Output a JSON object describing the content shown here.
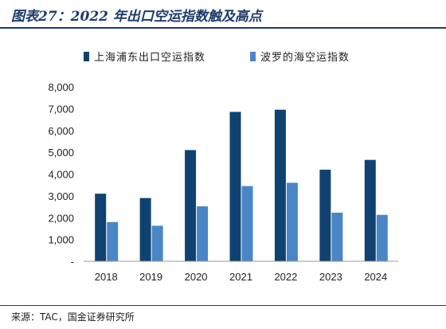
{
  "title": "图表27：2022 年出口空运指数触及高点",
  "source": "来源：TAC，国金证券研究所",
  "colors": {
    "series1": "#0f4270",
    "series2": "#4a86c5"
  },
  "chart_data": {
    "type": "bar",
    "title": "",
    "xlabel": "",
    "ylabel": "",
    "categories": [
      "2018",
      "2019",
      "2020",
      "2021",
      "2022",
      "2023",
      "2024"
    ],
    "ylim": [
      0,
      8000
    ],
    "yticks": [
      "-",
      "1,000",
      "2,000",
      "3,000",
      "4,000",
      "5,000",
      "6,000",
      "7,000",
      "8,000"
    ],
    "grid": false,
    "legend_position": "top",
    "series": [
      {
        "name": "上海浦东出口空运指数",
        "values": [
          3100,
          2900,
          5100,
          6850,
          6950,
          4200,
          4650
        ]
      },
      {
        "name": "波罗的海空运指数",
        "values": [
          1800,
          1630,
          2520,
          3450,
          3600,
          2230,
          2130
        ]
      }
    ]
  }
}
